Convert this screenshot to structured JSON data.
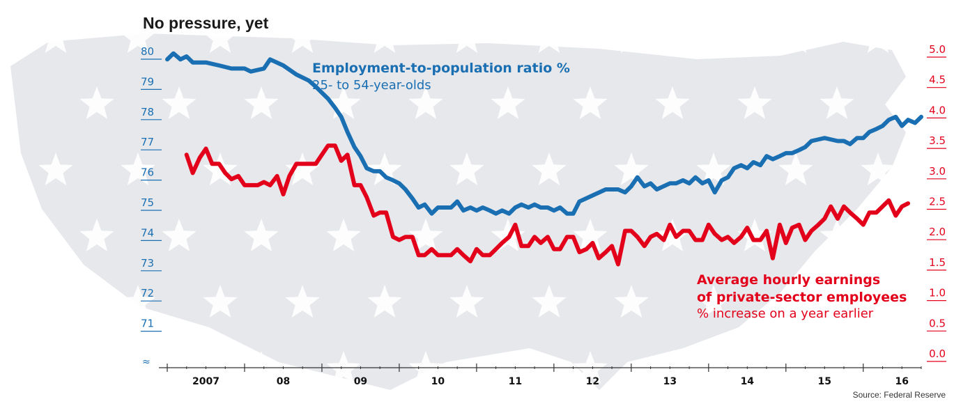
{
  "title": "No pressure, yet",
  "source": "Source: Federal Reserve",
  "colors": {
    "employment": "#1a6fb3",
    "earnings": "#e3001b",
    "axis": "#333333",
    "map": "#e6e8eb"
  },
  "labels": {
    "employment": {
      "title": "Employment-to-population ratio %",
      "subtitle": "25- to 54-year-olds"
    },
    "earnings": {
      "title_line1": "Average hourly earnings",
      "title_line2": "of private-sector employees",
      "subtitle": "% increase on a year earlier"
    }
  },
  "chart_data": {
    "type": "line",
    "title": "No pressure, yet",
    "x_ticks": [
      "2007",
      "08",
      "09",
      "10",
      "11",
      "12",
      "13",
      "14",
      "15",
      "16"
    ],
    "x_range": [
      2007.0,
      2016.75
    ],
    "y_left": {
      "range": [
        70,
        80
      ],
      "ticks": [
        "80",
        "79",
        "78",
        "77",
        "76",
        "75",
        "74",
        "73",
        "72",
        "71"
      ],
      "axis_break": true
    },
    "y_right": {
      "range": [
        0.0,
        5.0
      ],
      "ticks": [
        "5.0",
        "4.5",
        "4.0",
        "3.5",
        "3.0",
        "2.5",
        "2.0",
        "1.5",
        "1.0",
        "0.5",
        "0.0"
      ]
    },
    "series": [
      {
        "name": "Employment-to-population ratio %",
        "axis": "left",
        "points": [
          [
            2007.0,
            79.9
          ],
          [
            2007.08,
            80.1
          ],
          [
            2007.17,
            79.9
          ],
          [
            2007.25,
            80.0
          ],
          [
            2007.33,
            79.8
          ],
          [
            2007.5,
            79.8
          ],
          [
            2007.67,
            79.7
          ],
          [
            2007.83,
            79.6
          ],
          [
            2008.0,
            79.6
          ],
          [
            2008.08,
            79.5
          ],
          [
            2008.25,
            79.6
          ],
          [
            2008.33,
            79.9
          ],
          [
            2008.5,
            79.7
          ],
          [
            2008.67,
            79.4
          ],
          [
            2008.83,
            79.2
          ],
          [
            2008.92,
            79.0
          ],
          [
            2009.0,
            78.8
          ],
          [
            2009.08,
            78.6
          ],
          [
            2009.17,
            78.3
          ],
          [
            2009.25,
            78.0
          ],
          [
            2009.33,
            77.5
          ],
          [
            2009.42,
            77.0
          ],
          [
            2009.5,
            76.7
          ],
          [
            2009.58,
            76.3
          ],
          [
            2009.67,
            76.2
          ],
          [
            2009.75,
            76.2
          ],
          [
            2009.83,
            76.0
          ],
          [
            2009.92,
            75.9
          ],
          [
            2010.0,
            75.8
          ],
          [
            2010.08,
            75.6
          ],
          [
            2010.17,
            75.3
          ],
          [
            2010.25,
            75.0
          ],
          [
            2010.33,
            75.1
          ],
          [
            2010.42,
            74.8
          ],
          [
            2010.5,
            75.0
          ],
          [
            2010.67,
            75.0
          ],
          [
            2010.75,
            75.2
          ],
          [
            2010.83,
            74.9
          ],
          [
            2010.92,
            75.0
          ],
          [
            2011.0,
            74.9
          ],
          [
            2011.08,
            75.0
          ],
          [
            2011.17,
            74.9
          ],
          [
            2011.25,
            74.8
          ],
          [
            2011.33,
            74.9
          ],
          [
            2011.42,
            74.8
          ],
          [
            2011.5,
            75.0
          ],
          [
            2011.58,
            75.1
          ],
          [
            2011.67,
            75.0
          ],
          [
            2011.75,
            75.1
          ],
          [
            2011.83,
            75.0
          ],
          [
            2011.92,
            75.0
          ],
          [
            2012.0,
            74.9
          ],
          [
            2012.08,
            75.0
          ],
          [
            2012.17,
            74.8
          ],
          [
            2012.25,
            74.8
          ],
          [
            2012.33,
            75.2
          ],
          [
            2012.5,
            75.4
          ],
          [
            2012.67,
            75.6
          ],
          [
            2012.83,
            75.6
          ],
          [
            2012.92,
            75.5
          ],
          [
            2013.0,
            75.7
          ],
          [
            2013.08,
            76.0
          ],
          [
            2013.17,
            75.7
          ],
          [
            2013.25,
            75.8
          ],
          [
            2013.33,
            75.6
          ],
          [
            2013.5,
            75.8
          ],
          [
            2013.58,
            75.8
          ],
          [
            2013.67,
            75.9
          ],
          [
            2013.75,
            75.8
          ],
          [
            2013.83,
            76.0
          ],
          [
            2013.92,
            75.8
          ],
          [
            2014.0,
            75.9
          ],
          [
            2014.08,
            75.5
          ],
          [
            2014.17,
            75.9
          ],
          [
            2014.25,
            76.0
          ],
          [
            2014.33,
            76.3
          ],
          [
            2014.42,
            76.4
          ],
          [
            2014.5,
            76.3
          ],
          [
            2014.58,
            76.5
          ],
          [
            2014.67,
            76.4
          ],
          [
            2014.75,
            76.7
          ],
          [
            2014.83,
            76.6
          ],
          [
            2014.92,
            76.7
          ],
          [
            2015.0,
            76.8
          ],
          [
            2015.08,
            76.8
          ],
          [
            2015.17,
            76.9
          ],
          [
            2015.25,
            77.0
          ],
          [
            2015.33,
            77.2
          ],
          [
            2015.5,
            77.3
          ],
          [
            2015.67,
            77.2
          ],
          [
            2015.75,
            77.2
          ],
          [
            2015.83,
            77.1
          ],
          [
            2015.92,
            77.3
          ],
          [
            2016.0,
            77.3
          ],
          [
            2016.08,
            77.5
          ],
          [
            2016.17,
            77.6
          ],
          [
            2016.25,
            77.7
          ],
          [
            2016.33,
            77.9
          ],
          [
            2016.42,
            78.0
          ],
          [
            2016.5,
            77.7
          ],
          [
            2016.58,
            77.9
          ],
          [
            2016.67,
            77.8
          ],
          [
            2016.75,
            78.0
          ]
        ]
      },
      {
        "name": "Average hourly earnings of private-sector employees",
        "axis": "right",
        "points": [
          [
            2007.25,
            3.35
          ],
          [
            2007.33,
            3.05
          ],
          [
            2007.42,
            3.3
          ],
          [
            2007.5,
            3.45
          ],
          [
            2007.58,
            3.2
          ],
          [
            2007.67,
            3.2
          ],
          [
            2007.75,
            3.05
          ],
          [
            2007.83,
            2.95
          ],
          [
            2007.92,
            3.0
          ],
          [
            2008.0,
            2.85
          ],
          [
            2008.08,
            2.85
          ],
          [
            2008.17,
            2.85
          ],
          [
            2008.25,
            2.9
          ],
          [
            2008.33,
            2.85
          ],
          [
            2008.42,
            3.0
          ],
          [
            2008.5,
            2.7
          ],
          [
            2008.58,
            3.0
          ],
          [
            2008.67,
            3.2
          ],
          [
            2008.75,
            3.2
          ],
          [
            2008.83,
            3.2
          ],
          [
            2008.92,
            3.2
          ],
          [
            2009.0,
            3.35
          ],
          [
            2009.08,
            3.5
          ],
          [
            2009.17,
            3.5
          ],
          [
            2009.25,
            3.25
          ],
          [
            2009.33,
            3.35
          ],
          [
            2009.42,
            2.85
          ],
          [
            2009.5,
            2.85
          ],
          [
            2009.58,
            2.65
          ],
          [
            2009.67,
            2.35
          ],
          [
            2009.75,
            2.4
          ],
          [
            2009.83,
            2.4
          ],
          [
            2009.92,
            2.0
          ],
          [
            2010.0,
            1.95
          ],
          [
            2010.08,
            2.0
          ],
          [
            2010.17,
            2.0
          ],
          [
            2010.25,
            1.7
          ],
          [
            2010.33,
            1.7
          ],
          [
            2010.42,
            1.8
          ],
          [
            2010.5,
            1.7
          ],
          [
            2010.67,
            1.7
          ],
          [
            2010.75,
            1.8
          ],
          [
            2010.83,
            1.7
          ],
          [
            2010.92,
            1.6
          ],
          [
            2011.0,
            1.8
          ],
          [
            2011.08,
            1.7
          ],
          [
            2011.17,
            1.7
          ],
          [
            2011.25,
            1.8
          ],
          [
            2011.33,
            1.9
          ],
          [
            2011.42,
            2.0
          ],
          [
            2011.5,
            2.2
          ],
          [
            2011.58,
            1.85
          ],
          [
            2011.67,
            1.85
          ],
          [
            2011.75,
            2.0
          ],
          [
            2011.83,
            1.9
          ],
          [
            2011.92,
            2.0
          ],
          [
            2012.0,
            1.8
          ],
          [
            2012.08,
            1.8
          ],
          [
            2012.17,
            2.0
          ],
          [
            2012.25,
            2.0
          ],
          [
            2012.33,
            1.75
          ],
          [
            2012.42,
            1.8
          ],
          [
            2012.5,
            1.9
          ],
          [
            2012.58,
            1.65
          ],
          [
            2012.67,
            1.75
          ],
          [
            2012.75,
            1.85
          ],
          [
            2012.83,
            1.55
          ],
          [
            2012.92,
            2.1
          ],
          [
            2013.0,
            2.1
          ],
          [
            2013.08,
            2.0
          ],
          [
            2013.17,
            1.85
          ],
          [
            2013.25,
            2.0
          ],
          [
            2013.33,
            2.05
          ],
          [
            2013.42,
            1.95
          ],
          [
            2013.5,
            2.2
          ],
          [
            2013.58,
            2.0
          ],
          [
            2013.67,
            2.1
          ],
          [
            2013.75,
            2.1
          ],
          [
            2013.83,
            1.95
          ],
          [
            2013.92,
            1.95
          ],
          [
            2014.0,
            2.2
          ],
          [
            2014.08,
            2.05
          ],
          [
            2014.17,
            1.95
          ],
          [
            2014.25,
            2.0
          ],
          [
            2014.33,
            1.9
          ],
          [
            2014.42,
            2.0
          ],
          [
            2014.5,
            2.15
          ],
          [
            2014.58,
            1.95
          ],
          [
            2014.67,
            1.95
          ],
          [
            2014.75,
            2.1
          ],
          [
            2014.83,
            1.65
          ],
          [
            2014.92,
            2.2
          ],
          [
            2015.0,
            1.9
          ],
          [
            2015.08,
            2.15
          ],
          [
            2015.17,
            2.2
          ],
          [
            2015.25,
            1.95
          ],
          [
            2015.33,
            2.1
          ],
          [
            2015.42,
            2.2
          ],
          [
            2015.5,
            2.3
          ],
          [
            2015.58,
            2.5
          ],
          [
            2015.67,
            2.3
          ],
          [
            2015.75,
            2.5
          ],
          [
            2015.83,
            2.4
          ],
          [
            2015.92,
            2.3
          ],
          [
            2016.0,
            2.2
          ],
          [
            2016.08,
            2.4
          ],
          [
            2016.17,
            2.4
          ],
          [
            2016.25,
            2.5
          ],
          [
            2016.33,
            2.6
          ],
          [
            2016.42,
            2.35
          ],
          [
            2016.5,
            2.5
          ],
          [
            2016.58,
            2.55
          ]
        ]
      }
    ]
  }
}
